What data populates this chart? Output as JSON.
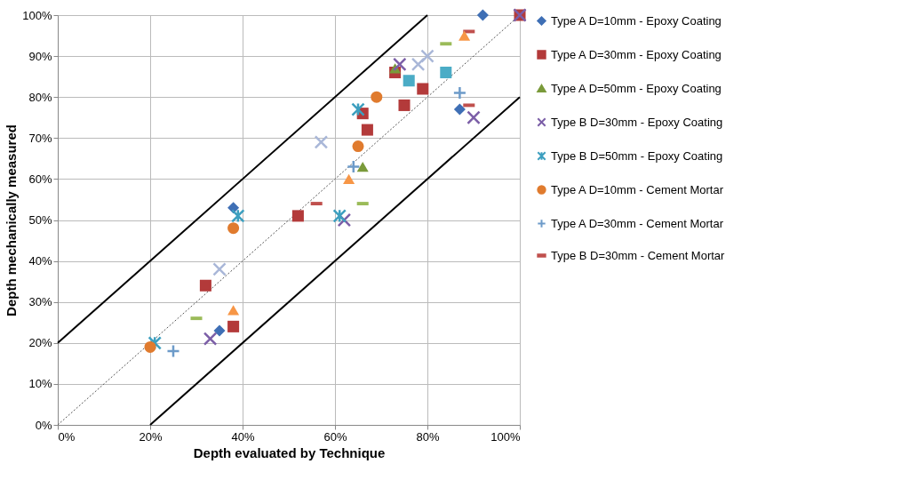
{
  "chart_data": {
    "type": "scatter",
    "xlabel": "Depth evaluated by Technique",
    "ylabel": "Depth mechanically measured",
    "xlim": [
      0,
      100
    ],
    "ylim": [
      0,
      100
    ],
    "xticks": [
      {
        "value": 0,
        "label": "0%"
      },
      {
        "value": 20,
        "label": "20%"
      },
      {
        "value": 40,
        "label": "40%"
      },
      {
        "value": 60,
        "label": "60%"
      },
      {
        "value": 80,
        "label": "80%"
      },
      {
        "value": 100,
        "label": "100%"
      }
    ],
    "yticks": [
      {
        "value": 0,
        "label": "0%"
      },
      {
        "value": 10,
        "label": "10%"
      },
      {
        "value": 20,
        "label": "20%"
      },
      {
        "value": 30,
        "label": "30%"
      },
      {
        "value": 40,
        "label": "40%"
      },
      {
        "value": 50,
        "label": "50%"
      },
      {
        "value": 60,
        "label": "60%"
      },
      {
        "value": 70,
        "label": "70%"
      },
      {
        "value": 80,
        "label": "80%"
      },
      {
        "value": 90,
        "label": "90%"
      },
      {
        "value": 100,
        "label": "100%"
      }
    ],
    "grid": true,
    "legend": "right",
    "series": [
      {
        "type": "line",
        "color": "#000000",
        "line_style": "solid",
        "marker": "none",
        "x": [
          0,
          80
        ],
        "values": [
          20,
          100
        ]
      },
      {
        "type": "line",
        "color": "#555555",
        "line_style": "dotted",
        "marker": "none",
        "x": [
          0,
          100
        ],
        "values": [
          0,
          100
        ]
      },
      {
        "type": "line",
        "color": "#000000",
        "line_style": "solid",
        "marker": "none",
        "x": [
          20,
          100
        ],
        "values": [
          0,
          80
        ]
      },
      {
        "name": "Type A D=10mm - Epoxy Coating",
        "color": "#3f6fb5",
        "marker": "diamond",
        "x": [
          92,
          38,
          35,
          87
        ],
        "values": [
          100,
          53,
          23,
          77
        ]
      },
      {
        "name": "Type A D=30mm - Epoxy Coating",
        "color": "#b33a3a",
        "marker": "square",
        "x": [
          100,
          32,
          38,
          52,
          66,
          67,
          75,
          79,
          73
        ],
        "values": [
          100,
          34,
          24,
          51,
          76,
          72,
          78,
          82,
          86
        ]
      },
      {
        "name": "Type A D=50mm - Epoxy Coating",
        "color": "#7a9a3a",
        "marker": "triangle",
        "x": [
          66,
          73
        ],
        "values": [
          63,
          87
        ]
      },
      {
        "name": "Type B D=30mm - Epoxy Coating",
        "color": "#7b5ea7",
        "marker": "cross",
        "x": [
          33,
          90,
          74,
          62,
          100
        ],
        "values": [
          21,
          75,
          88,
          50,
          100
        ]
      },
      {
        "name": "Type B D=50mm - Epoxy Coating",
        "color": "#3d9fbf",
        "marker": "cross",
        "x": [
          21,
          39,
          61,
          65
        ],
        "values": [
          20,
          51,
          51,
          77
        ]
      },
      {
        "name": "Type A D=10mm - Cement Mortar",
        "color": "#e07b2e",
        "marker": "circle",
        "x": [
          20,
          38,
          65,
          69
        ],
        "values": [
          19,
          48,
          68,
          80
        ]
      },
      {
        "name": "Type A D=30mm - Cement Mortar",
        "color": "#6d9bc9",
        "marker": "plus",
        "x": [
          25,
          64,
          87
        ],
        "values": [
          18,
          63,
          81
        ]
      },
      {
        "name": "Type B D=30mm - Cement Mortar",
        "color": "#c0504d",
        "marker": "square",
        "x": [
          56,
          89,
          89
        ],
        "values": [
          54,
          78,
          96
        ]
      },
      {
        "color": "#9bbb59",
        "marker": "square",
        "x": [
          30,
          66,
          84
        ],
        "values": [
          26,
          54,
          93
        ]
      },
      {
        "color": "#4bacc6",
        "marker": "square",
        "x": [
          76,
          84
        ],
        "values": [
          84,
          86
        ]
      },
      {
        "color": "#f79646",
        "marker": "triangle",
        "x": [
          38,
          63,
          88
        ],
        "values": [
          28,
          60,
          95
        ]
      },
      {
        "color": "#a9b7d8",
        "marker": "cross",
        "x": [
          35,
          57,
          78,
          80
        ],
        "values": [
          38,
          69,
          88,
          90
        ]
      }
    ]
  }
}
